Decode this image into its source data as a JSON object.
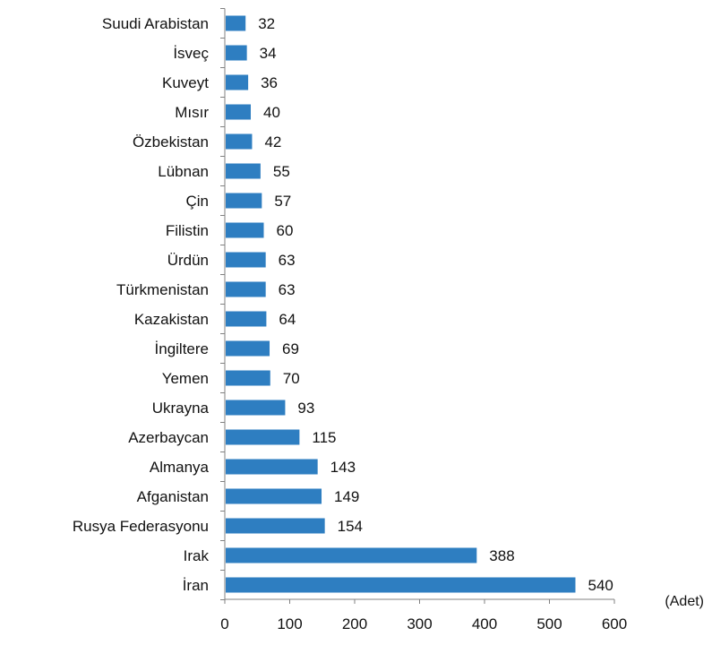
{
  "chart_data": {
    "type": "bar",
    "orientation": "horizontal",
    "title": "",
    "xlabel": "",
    "ylabel": "",
    "unit_label": "(Adet)",
    "xlim": [
      0,
      600
    ],
    "xticks": [
      0,
      100,
      200,
      300,
      400,
      500,
      600
    ],
    "grid": false,
    "bar_color": "#2e7ec1",
    "categories": [
      "Suudi Arabistan",
      "İsveç",
      "Kuveyt",
      "Mısır",
      "Özbekistan",
      "Lübnan",
      "Çin",
      "Filistin",
      "Ürdün",
      "Türkmenistan",
      "Kazakistan",
      "İngiltere",
      "Yemen",
      "Ukrayna",
      "Azerbaycan",
      "Almanya",
      "Afganistan",
      "Rusya Federasyonu",
      "Irak",
      "İran"
    ],
    "values": [
      32,
      34,
      36,
      40,
      42,
      55,
      57,
      60,
      63,
      63,
      64,
      69,
      70,
      93,
      115,
      143,
      149,
      154,
      388,
      540
    ]
  }
}
